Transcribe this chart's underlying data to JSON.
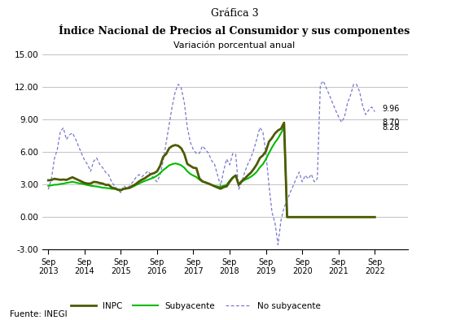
{
  "title1": "Gráfica 3",
  "title2_part1": "Índice Nacional de Precios al Consumidor y sus componentes",
  "subtitle": "Variación porcentual anual",
  "source": "Fuente: INEGI",
  "ylim": [
    -3.0,
    15.0
  ],
  "yticks": [
    -3.0,
    0.0,
    3.0,
    6.0,
    9.0,
    12.0,
    15.0
  ],
  "end_labels": {
    "inpc": 8.7,
    "subyacente": 8.28,
    "no_subyacente": 9.96
  },
  "legend": [
    "INPC",
    "Subyacente",
    "No subyacente"
  ],
  "inpc_color": "#4d5a00",
  "subyacente_color": "#00bb00",
  "no_subyacente_color": "#7777cc",
  "xtick_labels": [
    "Sep\n2013",
    "Sep\n2014",
    "Sep\n2015",
    "Sep\n2016",
    "Sep\n2017",
    "Sep\n2018",
    "Sep\n2019",
    "Sep\n2020",
    "Sep\n2021",
    "Sep\n2022"
  ],
  "inpc": [
    3.39,
    3.41,
    3.53,
    3.48,
    3.44,
    3.46,
    3.43,
    3.55,
    3.67,
    3.54,
    3.41,
    3.28,
    3.15,
    3.09,
    3.09,
    3.24,
    3.22,
    3.14,
    3.09,
    2.97,
    2.97,
    2.72,
    2.65,
    2.52,
    2.47,
    2.61,
    2.65,
    2.71,
    2.89,
    3.05,
    3.28,
    3.45,
    3.59,
    3.79,
    3.97,
    4.05,
    4.22,
    4.72,
    5.55,
    5.82,
    6.35,
    6.55,
    6.64,
    6.57,
    6.34,
    5.82,
    4.9,
    4.72,
    4.55,
    4.51,
    3.56,
    3.29,
    3.19,
    3.09,
    2.97,
    2.84,
    2.72,
    2.61,
    2.76,
    2.83,
    3.25,
    3.62,
    3.84,
    2.97,
    3.32,
    3.55,
    3.84,
    4.09,
    4.45,
    4.88,
    5.45,
    5.69,
    6.08,
    6.95,
    7.29,
    7.72,
    7.99,
    8.15,
    8.7,
    0,
    0,
    0,
    0,
    0,
    0,
    0,
    0,
    0,
    0,
    0,
    0,
    0,
    0,
    0,
    0,
    0,
    0,
    0,
    0,
    0,
    0,
    0,
    0,
    0,
    0,
    0,
    0,
    0,
    0
  ],
  "subyacente": [
    2.89,
    2.92,
    2.98,
    2.99,
    3.05,
    3.09,
    3.15,
    3.2,
    3.25,
    3.19,
    3.12,
    3.09,
    3.02,
    2.95,
    2.89,
    2.85,
    2.82,
    2.77,
    2.71,
    2.69,
    2.65,
    2.61,
    2.59,
    2.55,
    2.52,
    2.59,
    2.63,
    2.69,
    2.81,
    2.95,
    3.08,
    3.22,
    3.34,
    3.44,
    3.55,
    3.67,
    3.82,
    4.05,
    4.33,
    4.54,
    4.77,
    4.88,
    4.95,
    4.88,
    4.77,
    4.55,
    4.22,
    3.98,
    3.82,
    3.69,
    3.45,
    3.28,
    3.19,
    3.08,
    2.97,
    2.87,
    2.82,
    2.78,
    2.88,
    2.97,
    3.35,
    3.65,
    3.84,
    3.02,
    3.25,
    3.44,
    3.55,
    3.72,
    3.92,
    4.19,
    4.59,
    4.88,
    5.34,
    5.9,
    6.42,
    6.88,
    7.25,
    7.75,
    8.28,
    0,
    0,
    0,
    0,
    0,
    0,
    0,
    0,
    0,
    0,
    0,
    0,
    0,
    0,
    0,
    0,
    0,
    0,
    0,
    0,
    0,
    0,
    0,
    0,
    0,
    0,
    0,
    0,
    0,
    0
  ],
  "no_subyacente": [
    2.55,
    3.45,
    5.35,
    6.25,
    7.88,
    8.22,
    7.15,
    7.58,
    7.75,
    7.22,
    6.55,
    5.88,
    5.25,
    4.85,
    4.22,
    5.15,
    5.45,
    4.88,
    4.55,
    4.12,
    3.88,
    3.22,
    2.85,
    2.52,
    2.25,
    2.88,
    2.65,
    2.89,
    3.25,
    3.65,
    3.92,
    3.72,
    3.98,
    4.25,
    3.88,
    3.52,
    3.25,
    3.89,
    5.15,
    6.88,
    8.55,
    10.22,
    11.55,
    12.25,
    11.88,
    10.55,
    8.25,
    6.88,
    6.22,
    5.85,
    5.88,
    6.55,
    6.25,
    5.88,
    5.22,
    4.88,
    3.85,
    2.88,
    4.25,
    5.35,
    4.82,
    5.85,
    5.78,
    2.55,
    3.25,
    4.15,
    4.88,
    5.45,
    6.25,
    7.22,
    8.25,
    7.85,
    5.88,
    2.95,
    0.45,
    -0.55,
    -2.55,
    -0.25,
    0.88,
    1.55,
    2.25,
    2.88,
    3.55,
    4.15,
    3.25,
    3.85,
    3.52,
    3.95,
    3.25,
    3.55,
    12.22,
    12.55,
    11.88,
    11.25,
    10.55,
    9.88,
    9.25,
    8.75,
    9.25,
    10.55,
    11.25,
    12.25,
    12.22,
    11.55,
    10.25,
    9.45,
    9.88,
    10.15,
    9.72,
    9.45,
    9.15,
    9.96
  ]
}
